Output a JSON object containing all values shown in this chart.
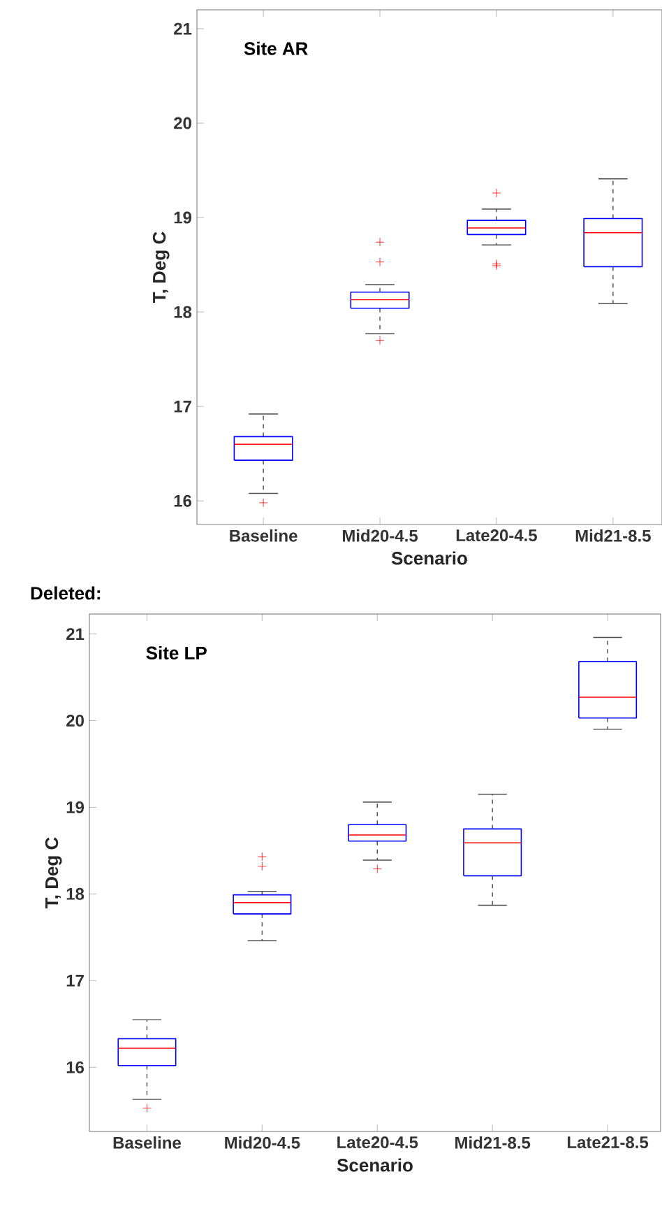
{
  "chart_data": [
    {
      "type": "box",
      "title": "Site AR",
      "xlabel": "Scenario",
      "ylabel": "T, Deg C",
      "categories": [
        "Baseline",
        "Mid20-4.5",
        "Late20-4.5",
        "Mid21-8.5"
      ],
      "ylim": [
        15.75,
        21.2
      ],
      "yticks": [
        16,
        17,
        18,
        19,
        20,
        21
      ],
      "marker": "cross",
      "series": [
        {
          "color": "#0000ff",
          "boxes": [
            {
              "low": 16.08,
              "q1": 16.43,
              "median": 16.6,
              "q3": 16.68,
              "high": 16.92,
              "outliers": [
                15.98
              ]
            },
            {
              "low": 17.77,
              "q1": 18.04,
              "median": 18.13,
              "q3": 18.21,
              "high": 18.29,
              "outliers": [
                18.74,
                18.53,
                17.7
              ]
            },
            {
              "low": 18.71,
              "q1": 18.82,
              "median": 18.89,
              "q3": 18.97,
              "high": 19.09,
              "outliers": [
                19.26,
                18.51,
                18.49
              ]
            },
            {
              "low": 18.09,
              "q1": 18.48,
              "median": 18.84,
              "q3": 18.99,
              "high": 19.41
            }
          ]
        }
      ]
    },
    {
      "type": "box",
      "title": "Site LP",
      "xlabel": "Scenario",
      "ylabel": "T, Deg C",
      "categories": [
        "Baseline",
        "Mid20-4.5",
        "Late20-4.5",
        "Mid21-8.5",
        "Late21-8.5"
      ],
      "ylim": [
        15.26,
        21.23
      ],
      "yticks": [
        16,
        17,
        18,
        19,
        20,
        21
      ],
      "marker": "cross",
      "annotations": [
        "Deleted:"
      ],
      "series": [
        {
          "color": "#0000ff",
          "boxes": [
            {
              "low": 15.63,
              "q1": 16.02,
              "median": 16.22,
              "q3": 16.33,
              "high": 16.55,
              "outliers": [
                15.53
              ]
            },
            {
              "low": 17.46,
              "q1": 17.77,
              "median": 17.9,
              "q3": 17.99,
              "high": 18.03,
              "outliers": [
                18.43,
                18.32
              ]
            },
            {
              "low": 18.39,
              "q1": 18.61,
              "median": 18.68,
              "q3": 18.8,
              "high": 19.06,
              "outliers": [
                18.29
              ]
            },
            {
              "low": 17.87,
              "q1": 18.21,
              "median": 18.59,
              "q3": 18.75,
              "high": 19.15
            },
            {
              "low": 19.9,
              "q1": 20.03,
              "median": 20.27,
              "q3": 20.68,
              "high": 20.96
            }
          ]
        }
      ]
    }
  ]
}
